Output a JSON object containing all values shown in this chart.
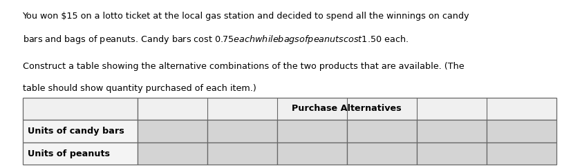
{
  "paragraph1_line1": "You won $15 on a lotto ticket at the local gas station and decided to spend all the winnings on candy",
  "paragraph1_line2": "bars and bags of peanuts. Candy bars cost $0.75 each while bags of peanuts cost $1.50 each.",
  "paragraph2_line1": "Construct a table showing the alternative combinations of the two products that are available. (The",
  "paragraph2_line2": "table should show quantity purchased of each item.)",
  "header_label": "Purchase Alternatives",
  "row_labels": [
    "Units of candy bars",
    "Units of peanuts"
  ],
  "num_data_cols": 6,
  "bg_color": "#ffffff",
  "text_color": "#000000",
  "table_line_color": "#666666",
  "cell_bg": "#d4d4d4",
  "font_size_text": 9.2,
  "font_size_table": 9.2
}
